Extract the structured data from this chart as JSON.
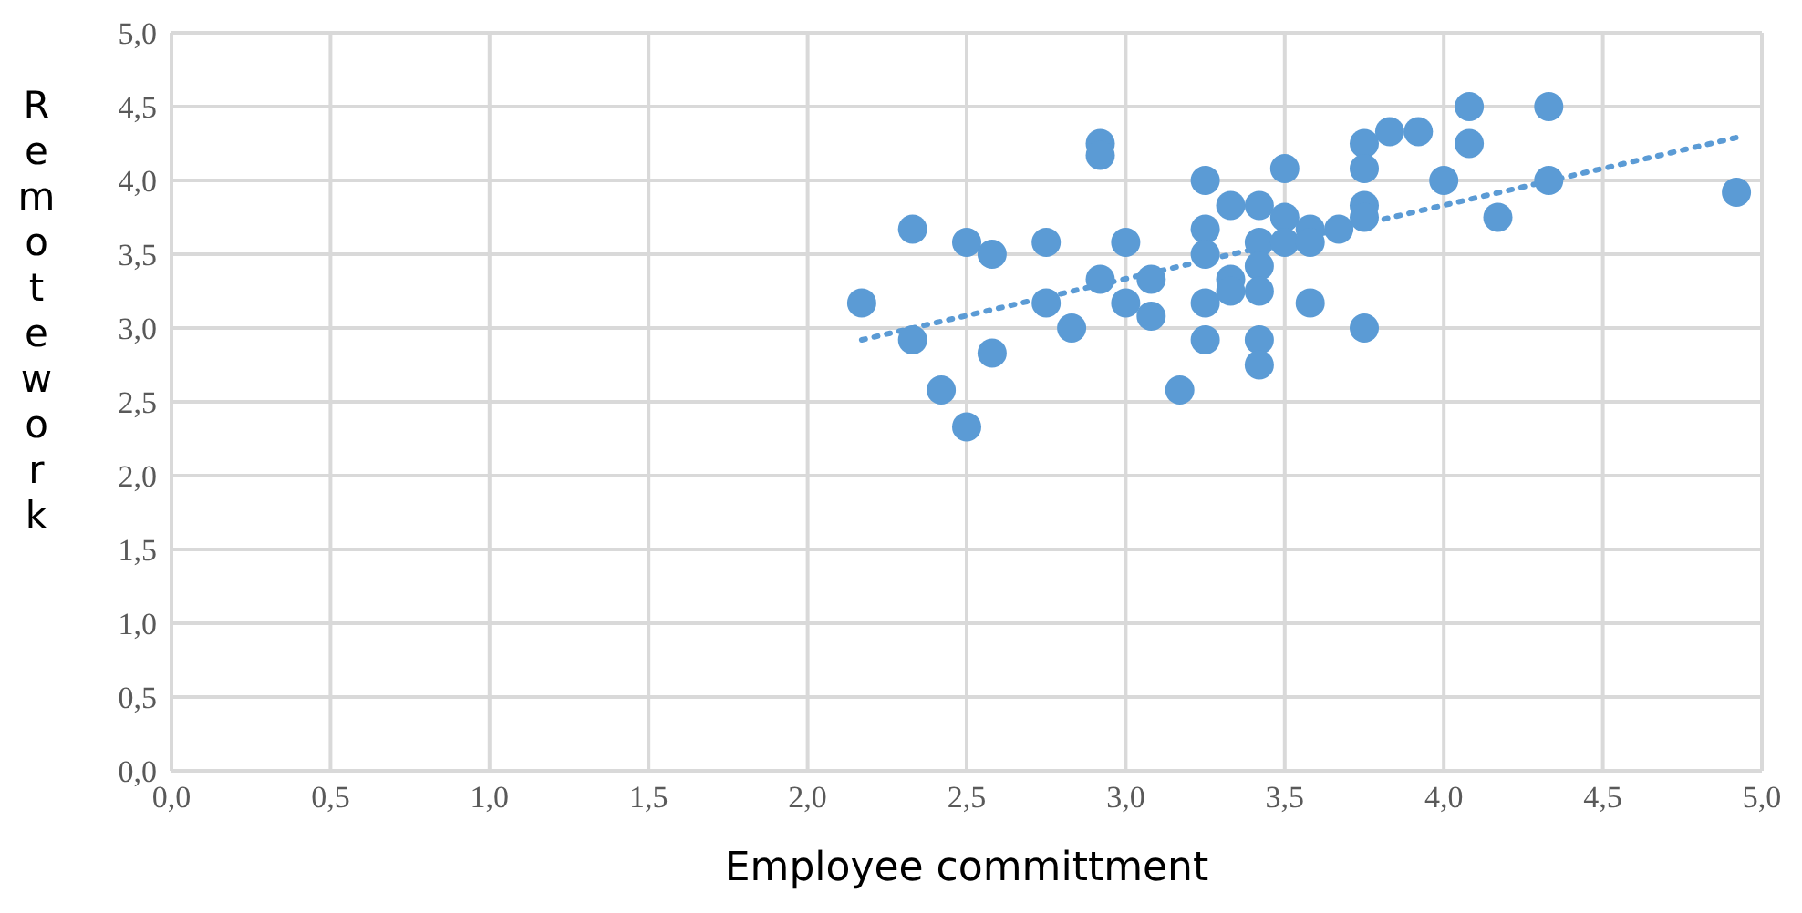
{
  "chart_data": {
    "type": "scatter",
    "xlabel": "Employee committment",
    "ylabel": "Remotework",
    "xlim": [
      0,
      5
    ],
    "ylim": [
      0,
      5
    ],
    "xticks": [
      {
        "value": 0,
        "label": "0,0"
      },
      {
        "value": 0.5,
        "label": "0,5"
      },
      {
        "value": 1,
        "label": "1,0"
      },
      {
        "value": 1.5,
        "label": "1,5"
      },
      {
        "value": 2,
        "label": "2,0"
      },
      {
        "value": 2.5,
        "label": "2,5"
      },
      {
        "value": 3,
        "label": "3,0"
      },
      {
        "value": 3.5,
        "label": "3,5"
      },
      {
        "value": 4,
        "label": "4,0"
      },
      {
        "value": 4.5,
        "label": "4,5"
      },
      {
        "value": 5,
        "label": "5,0"
      }
    ],
    "yticks": [
      {
        "value": 0,
        "label": "0,0"
      },
      {
        "value": 0.5,
        "label": "0,5"
      },
      {
        "value": 1,
        "label": "1,0"
      },
      {
        "value": 1.5,
        "label": "1,5"
      },
      {
        "value": 2,
        "label": "2,0"
      },
      {
        "value": 2.5,
        "label": "2,5"
      },
      {
        "value": 3,
        "label": "3,0"
      },
      {
        "value": 3.5,
        "label": "3,5"
      },
      {
        "value": 4,
        "label": "4,0"
      },
      {
        "value": 4.5,
        "label": "4,5"
      },
      {
        "value": 5,
        "label": "5,0"
      }
    ],
    "grid": true,
    "marker": "circle",
    "series": [
      {
        "color": "#5b9bd5",
        "x": [
          2.17,
          2.33,
          2.33,
          2.42,
          2.5,
          2.5,
          2.58,
          2.58,
          2.75,
          2.75,
          2.83,
          2.92,
          2.92,
          2.92,
          3.0,
          3.0,
          3.08,
          3.08,
          3.17,
          3.25,
          3.25,
          3.25,
          3.25,
          3.25,
          3.33,
          3.33,
          3.33,
          3.42,
          3.42,
          3.42,
          3.42,
          3.42,
          3.42,
          3.5,
          3.5,
          3.5,
          3.58,
          3.58,
          3.58,
          3.67,
          3.75,
          3.75,
          3.75,
          3.75,
          3.75,
          3.83,
          3.92,
          4.0,
          4.08,
          4.08,
          4.17,
          4.33,
          4.33,
          4.92
        ],
        "values": [
          3.17,
          3.67,
          2.92,
          2.58,
          3.58,
          2.33,
          3.5,
          2.83,
          3.58,
          3.17,
          3.0,
          4.25,
          4.17,
          3.33,
          3.58,
          3.17,
          3.33,
          3.08,
          2.58,
          4.0,
          3.67,
          3.5,
          3.17,
          2.92,
          3.83,
          3.33,
          3.25,
          3.83,
          3.58,
          3.42,
          3.25,
          2.92,
          2.75,
          4.08,
          3.75,
          3.58,
          3.67,
          3.58,
          3.17,
          3.67,
          4.25,
          4.08,
          3.83,
          3.75,
          3.0,
          4.33,
          4.33,
          4.0,
          4.5,
          4.25,
          3.75,
          4.5,
          4.0,
          3.92
        ]
      },
      {
        "type": "line",
        "color": "#5b9bd5",
        "line_style": "dotted",
        "marker": "none",
        "x": [
          2.17,
          4.92
        ],
        "values": [
          2.92,
          4.29
        ]
      }
    ]
  }
}
